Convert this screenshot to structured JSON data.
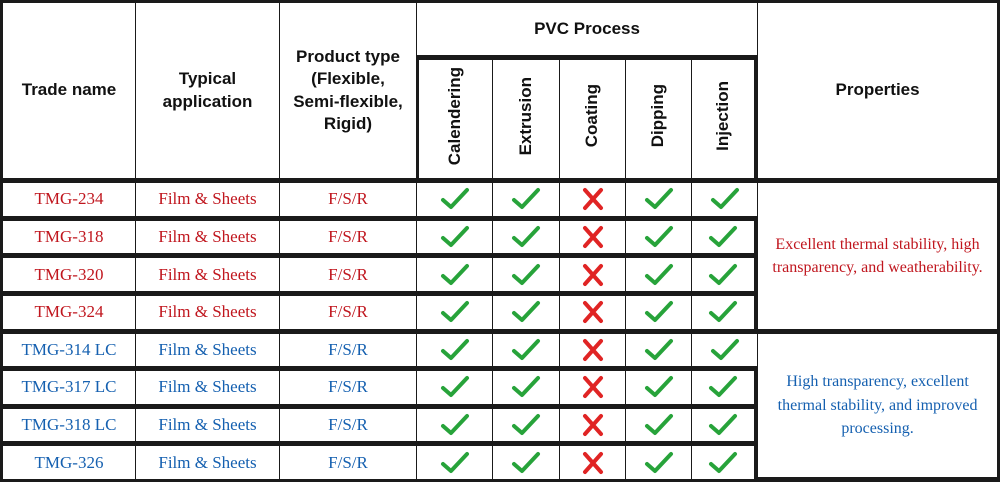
{
  "header": {
    "trade_name": "Trade name",
    "typical_application": "Typical application",
    "product_type": "Product type (Flexible, Semi-flexible, Rigid)",
    "pvc_process": "PVC Process",
    "processes": [
      "Calendering",
      "Extrusion",
      "Coating",
      "Dipping",
      "Injection"
    ],
    "properties": "Properties"
  },
  "groups": [
    {
      "color": "#c0161e",
      "properties": "Excellent thermal stability, high transparency, and weatherability.",
      "rows": [
        {
          "trade_name": "TMG-234",
          "application": "Film & Sheets",
          "product_type": "F/S/R",
          "process": [
            "check",
            "check",
            "cross",
            "check",
            "check"
          ]
        },
        {
          "trade_name": "TMG-318",
          "application": "Film & Sheets",
          "product_type": "F/S/R",
          "process": [
            "check",
            "check",
            "cross",
            "check",
            "check"
          ]
        },
        {
          "trade_name": "TMG-320",
          "application": "Film & Sheets",
          "product_type": "F/S/R",
          "process": [
            "check",
            "check",
            "cross",
            "check",
            "check"
          ]
        },
        {
          "trade_name": "TMG-324",
          "application": "Film & Sheets",
          "product_type": "F/S/R",
          "process": [
            "check",
            "check",
            "cross",
            "check",
            "check"
          ]
        }
      ]
    },
    {
      "color": "#1560b0",
      "properties": "High transparency, excellent thermal stability, and improved processing.",
      "rows": [
        {
          "trade_name": "TMG-314 LC",
          "application": "Film & Sheets",
          "product_type": "F/S/R",
          "process": [
            "check",
            "check",
            "cross",
            "check",
            "check"
          ]
        },
        {
          "trade_name": "TMG-317 LC",
          "application": "Film & Sheets",
          "product_type": "F/S/R",
          "process": [
            "check",
            "check",
            "cross",
            "check",
            "check"
          ]
        },
        {
          "trade_name": "TMG-318 LC",
          "application": "Film & Sheets",
          "product_type": "F/S/R",
          "process": [
            "check",
            "check",
            "cross",
            "check",
            "check"
          ]
        },
        {
          "trade_name": "TMG-326",
          "application": "Film & Sheets",
          "product_type": "F/S/R",
          "process": [
            "check",
            "check",
            "cross",
            "check",
            "check"
          ]
        }
      ]
    }
  ],
  "icons": {
    "check": {
      "name": "check-icon",
      "color": "#27a33a"
    },
    "cross": {
      "name": "cross-icon",
      "color": "#e02424"
    }
  }
}
